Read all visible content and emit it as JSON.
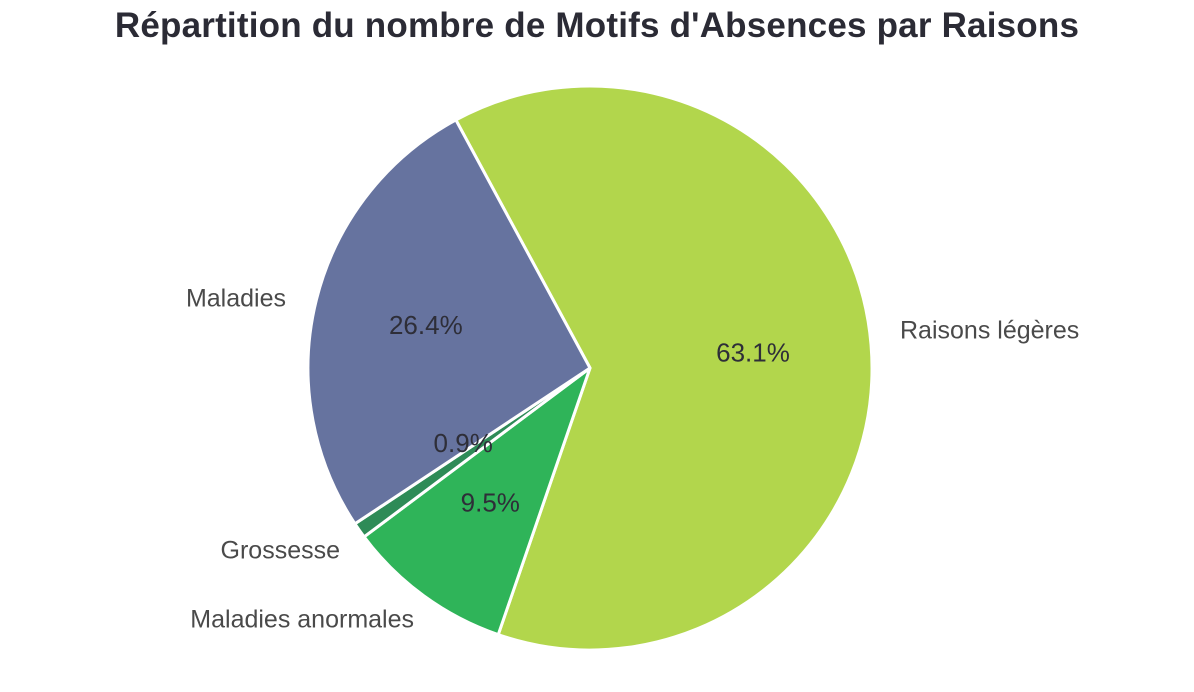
{
  "chart_data": {
    "type": "pie",
    "title": "Répartition du nombre de Motifs d'Absences par Raisons",
    "categories": [
      "Raisons légères",
      "Maladies anormales",
      "Grossesse",
      "Maladies"
    ],
    "values": [
      63.1,
      9.5,
      0.9,
      26.4
    ],
    "value_labels": [
      "63.1%",
      "9.5%",
      "0.9%",
      "26.4%"
    ],
    "colors": [
      "#b2d64c",
      "#2fb459",
      "#2e8b57",
      "#66739f"
    ],
    "legend": "none",
    "start": "top",
    "direction": "clockwise"
  }
}
